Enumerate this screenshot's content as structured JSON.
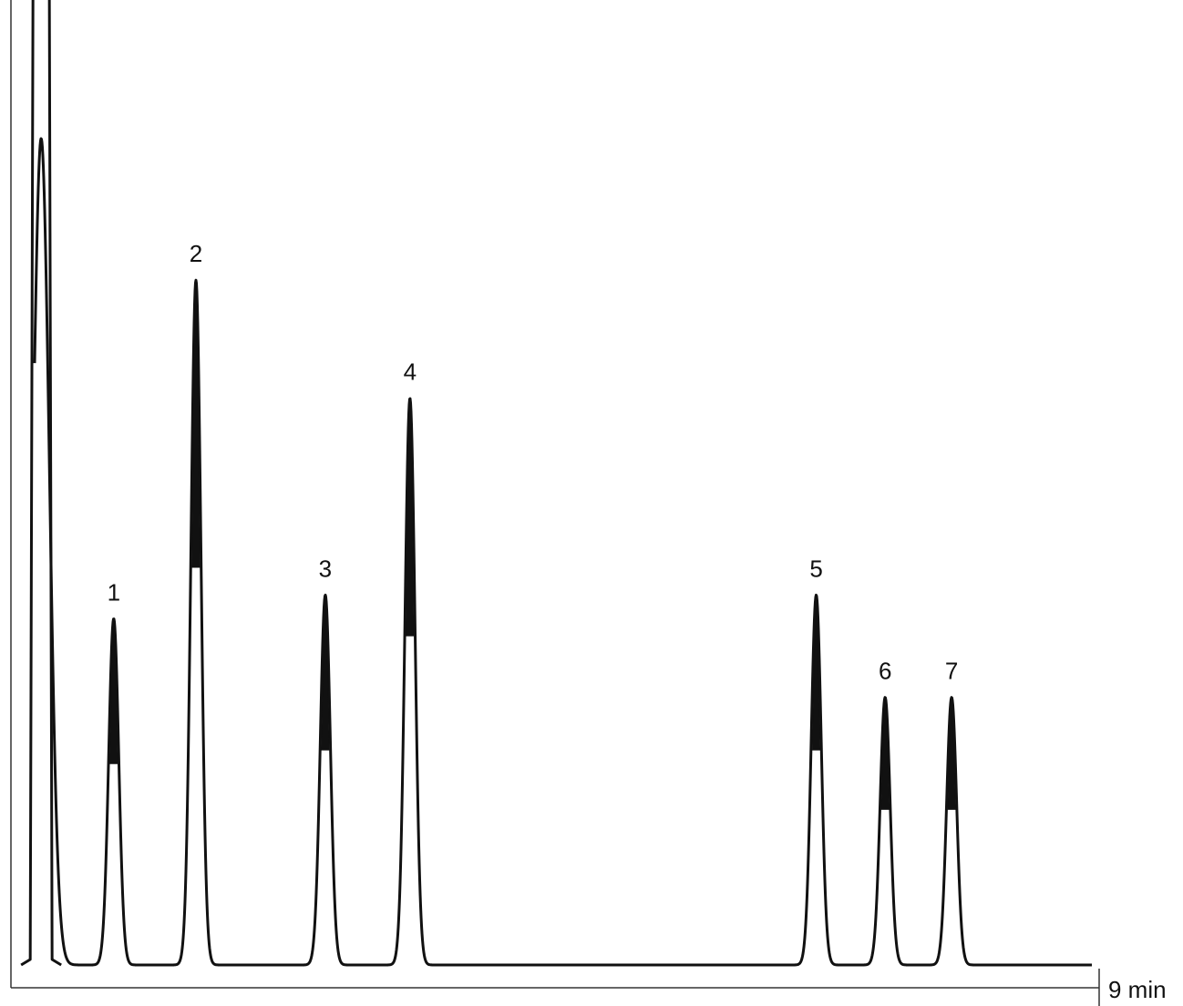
{
  "chart_data": {
    "type": "line",
    "title": "",
    "xlabel": "",
    "ylabel": "",
    "x_end_label": "9 min",
    "xlim": [
      0,
      9
    ],
    "ylim": [
      0,
      100
    ],
    "grid": false,
    "legend": "none",
    "line_color": "#111111",
    "solvent_peak": {
      "t": 0.25,
      "height": 105
    },
    "peaks": [
      {
        "label": "1",
        "t": 0.85,
        "height": 44
      },
      {
        "label": "2",
        "t": 1.53,
        "height": 87
      },
      {
        "label": "3",
        "t": 2.6,
        "height": 47
      },
      {
        "label": "4",
        "t": 3.3,
        "height": 72
      },
      {
        "label": "5",
        "t": 6.66,
        "height": 47
      },
      {
        "label": "6",
        "t": 7.23,
        "height": 34
      },
      {
        "label": "7",
        "t": 7.78,
        "height": 34
      }
    ]
  }
}
